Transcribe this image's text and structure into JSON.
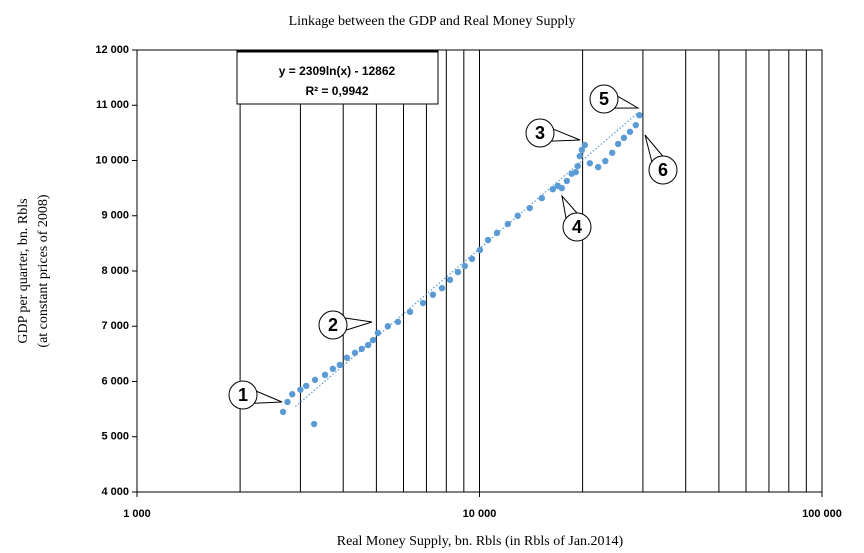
{
  "chart_data": {
    "type": "scatter",
    "title": "Linkage between the GDP and Real Money Supply",
    "xlabel": "Real Money Supply, bn. Rbls (in Rbls of Jan.2014)",
    "ylabel": [
      "GDP per quarter, bn. Rbls",
      "(at constant prices of 2008)"
    ],
    "xscale": "log",
    "xlim": [
      1000,
      100000
    ],
    "xticks": [
      {
        "value": 1000,
        "label": "1 000"
      },
      {
        "value": 10000,
        "label": "10 000"
      },
      {
        "value": 100000,
        "label": "100 000"
      }
    ],
    "xgrid": [
      2000,
      3000,
      4000,
      5000,
      6000,
      7000,
      8000,
      9000,
      20000,
      30000,
      40000,
      50000,
      60000,
      70000,
      80000,
      90000
    ],
    "ylim": [
      4000,
      12000
    ],
    "yticks": [
      {
        "value": 4000,
        "label": "4 000"
      },
      {
        "value": 5000,
        "label": "5 000"
      },
      {
        "value": 6000,
        "label": "6 000"
      },
      {
        "value": 7000,
        "label": "7 000"
      },
      {
        "value": 8000,
        "label": "8 000"
      },
      {
        "value": 9000,
        "label": "9 000"
      },
      {
        "value": 10000,
        "label": "10 000"
      },
      {
        "value": 11000,
        "label": "11 000"
      },
      {
        "value": 12000,
        "label": "12 000"
      }
    ],
    "series": [
      {
        "color": "#5b9bd5",
        "x": [
          2670,
          2750,
          2840,
          3000,
          3120,
          3310,
          3290,
          3540,
          3730,
          3910,
          4100,
          4330,
          4530,
          4730,
          4890,
          5050,
          5400,
          5780,
          6270,
          6840,
          7310,
          7770,
          8200,
          8650,
          9060,
          9510,
          10030,
          10590,
          11250,
          12100,
          12930,
          14020,
          15200,
          16370,
          16930,
          17390,
          17990,
          18590,
          19100,
          19360,
          19620,
          19900,
          20300,
          21000,
          22200,
          23300,
          24400,
          25400,
          26400,
          27500,
          28600,
          29300
        ],
        "values": [
          5450,
          5630,
          5770,
          5850,
          5920,
          6030,
          5230,
          6120,
          6230,
          6300,
          6430,
          6520,
          6590,
          6660,
          6750,
          6880,
          7000,
          7080,
          7260,
          7420,
          7570,
          7690,
          7840,
          7980,
          8090,
          8220,
          8380,
          8560,
          8690,
          8850,
          9000,
          9140,
          9320,
          9480,
          9540,
          9500,
          9630,
          9760,
          9790,
          9900,
          10080,
          10190,
          10280,
          9950,
          9880,
          9990,
          10140,
          10300,
          10410,
          10520,
          10640,
          10820
        ]
      }
    ],
    "trendline": {
      "x": [
        2900,
        29000
      ],
      "y": [
        5546,
        10863
      ]
    },
    "equation": [
      "y = 2309ln(x) - 12862",
      "R² = 0,9942"
    ],
    "callouts": [
      "1",
      "2",
      "3",
      "4",
      "5",
      "6"
    ]
  }
}
